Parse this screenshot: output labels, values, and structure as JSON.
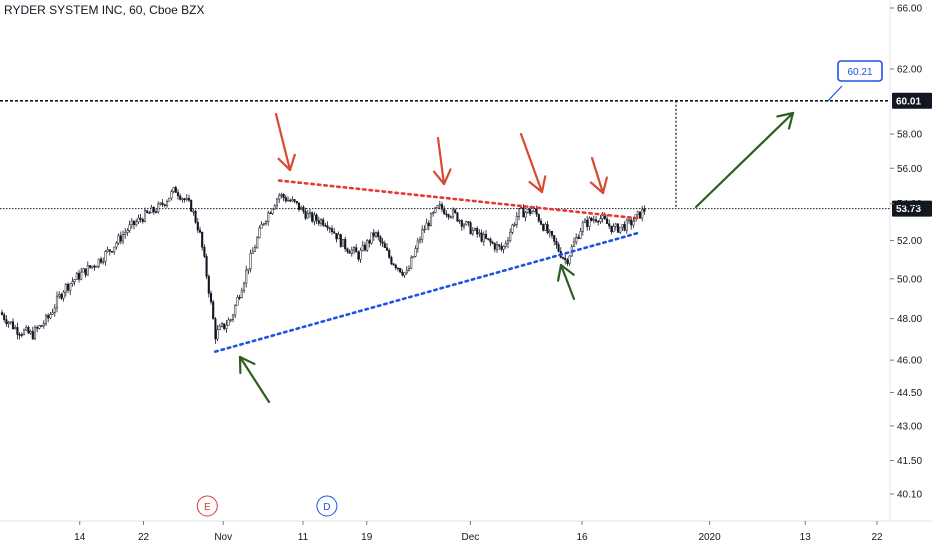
{
  "colors": {
    "background": "#ffffff",
    "candle": "#131722",
    "resistance_line": "#e53935",
    "support_line": "#1e53e5",
    "down_arrows": "#d84a32",
    "up_arrows": "#2e5e1f",
    "price_tag": "#131722",
    "callout_border": "#1e53e5",
    "earnings_marker": "#e53935",
    "dividend_marker": "#1e53e5"
  },
  "chart_data": {
    "type": "candlestick",
    "title": "RYDER SYSTEM INC, 60, Cboe BZX",
    "y_axis": {
      "range": [
        39.5,
        66.5
      ],
      "scale": "log",
      "position": "right",
      "tick_labels": [
        "66.00",
        "62.00",
        "58.00",
        "56.00",
        "54.00",
        "52.00",
        "50.00",
        "48.00",
        "46.00",
        "44.50",
        "43.00",
        "41.50",
        "40.10"
      ],
      "tick_values": [
        66.0,
        62.0,
        58.0,
        56.0,
        54.0,
        52.0,
        50.0,
        48.0,
        46.0,
        44.5,
        43.0,
        41.5,
        40.1
      ]
    },
    "x_axis": {
      "tick_labels": [
        "14",
        "22",
        "Nov",
        "11",
        "19",
        "Dec",
        "16",
        "2020",
        "13",
        "22"
      ],
      "range_start": "2019-10-04",
      "range_end": "2020-01-22"
    },
    "horizontal_lines": [
      {
        "label": "60.01",
        "value": 60.01,
        "style": "dashed"
      },
      {
        "label": "53.73",
        "value": 53.73,
        "style": "dotted",
        "role": "last-price"
      }
    ],
    "callout": {
      "label": "60.21",
      "value": 60.21
    },
    "trendlines": [
      {
        "name": "resistance",
        "color": "red",
        "points": [
          [
            "2019-11-08",
            55.3
          ],
          [
            "2019-12-23",
            53.2
          ]
        ]
      },
      {
        "name": "support",
        "color": "blue",
        "points": [
          [
            "2019-10-31",
            46.4
          ],
          [
            "2019-12-23",
            52.4
          ]
        ]
      }
    ],
    "events": [
      {
        "label": "E",
        "date": "2019-10-30"
      },
      {
        "label": "D",
        "date": "2019-11-14"
      }
    ],
    "series": [
      {
        "x": [
          "2019-10-04",
          "2019-10-06",
          "2019-10-08",
          "2019-10-10",
          "2019-10-12",
          "2019-10-14",
          "2019-10-16",
          "2019-10-18",
          "2019-10-20",
          "2019-10-22",
          "2019-10-24",
          "2019-10-26",
          "2019-10-28",
          "2019-10-29",
          "2019-10-30",
          "2019-10-31",
          "2019-11-02",
          "2019-11-04",
          "2019-11-06",
          "2019-11-08",
          "2019-11-10",
          "2019-11-12",
          "2019-11-14",
          "2019-11-16",
          "2019-11-18",
          "2019-11-20",
          "2019-11-22",
          "2019-11-24",
          "2019-11-26",
          "2019-11-28",
          "2019-11-30",
          "2019-12-02",
          "2019-12-04",
          "2019-12-06",
          "2019-12-08",
          "2019-12-10",
          "2019-12-12",
          "2019-12-14",
          "2019-12-16",
          "2019-12-18",
          "2019-12-20",
          "2019-12-22",
          "2019-12-24"
        ],
        "close": [
          48.3,
          47.5,
          47.2,
          48.0,
          49.5,
          50.2,
          50.8,
          51.6,
          52.6,
          53.3,
          53.8,
          54.8,
          53.8,
          52.5,
          50.0,
          47.2,
          48.0,
          50.5,
          53.0,
          54.5,
          54.0,
          53.2,
          53.0,
          51.8,
          51.2,
          52.4,
          51.0,
          50.2,
          52.5,
          53.8,
          53.4,
          52.6,
          52.0,
          51.5,
          53.5,
          53.6,
          52.2,
          50.9,
          52.8,
          53.3,
          52.6,
          52.9,
          53.73
        ]
      }
    ]
  }
}
